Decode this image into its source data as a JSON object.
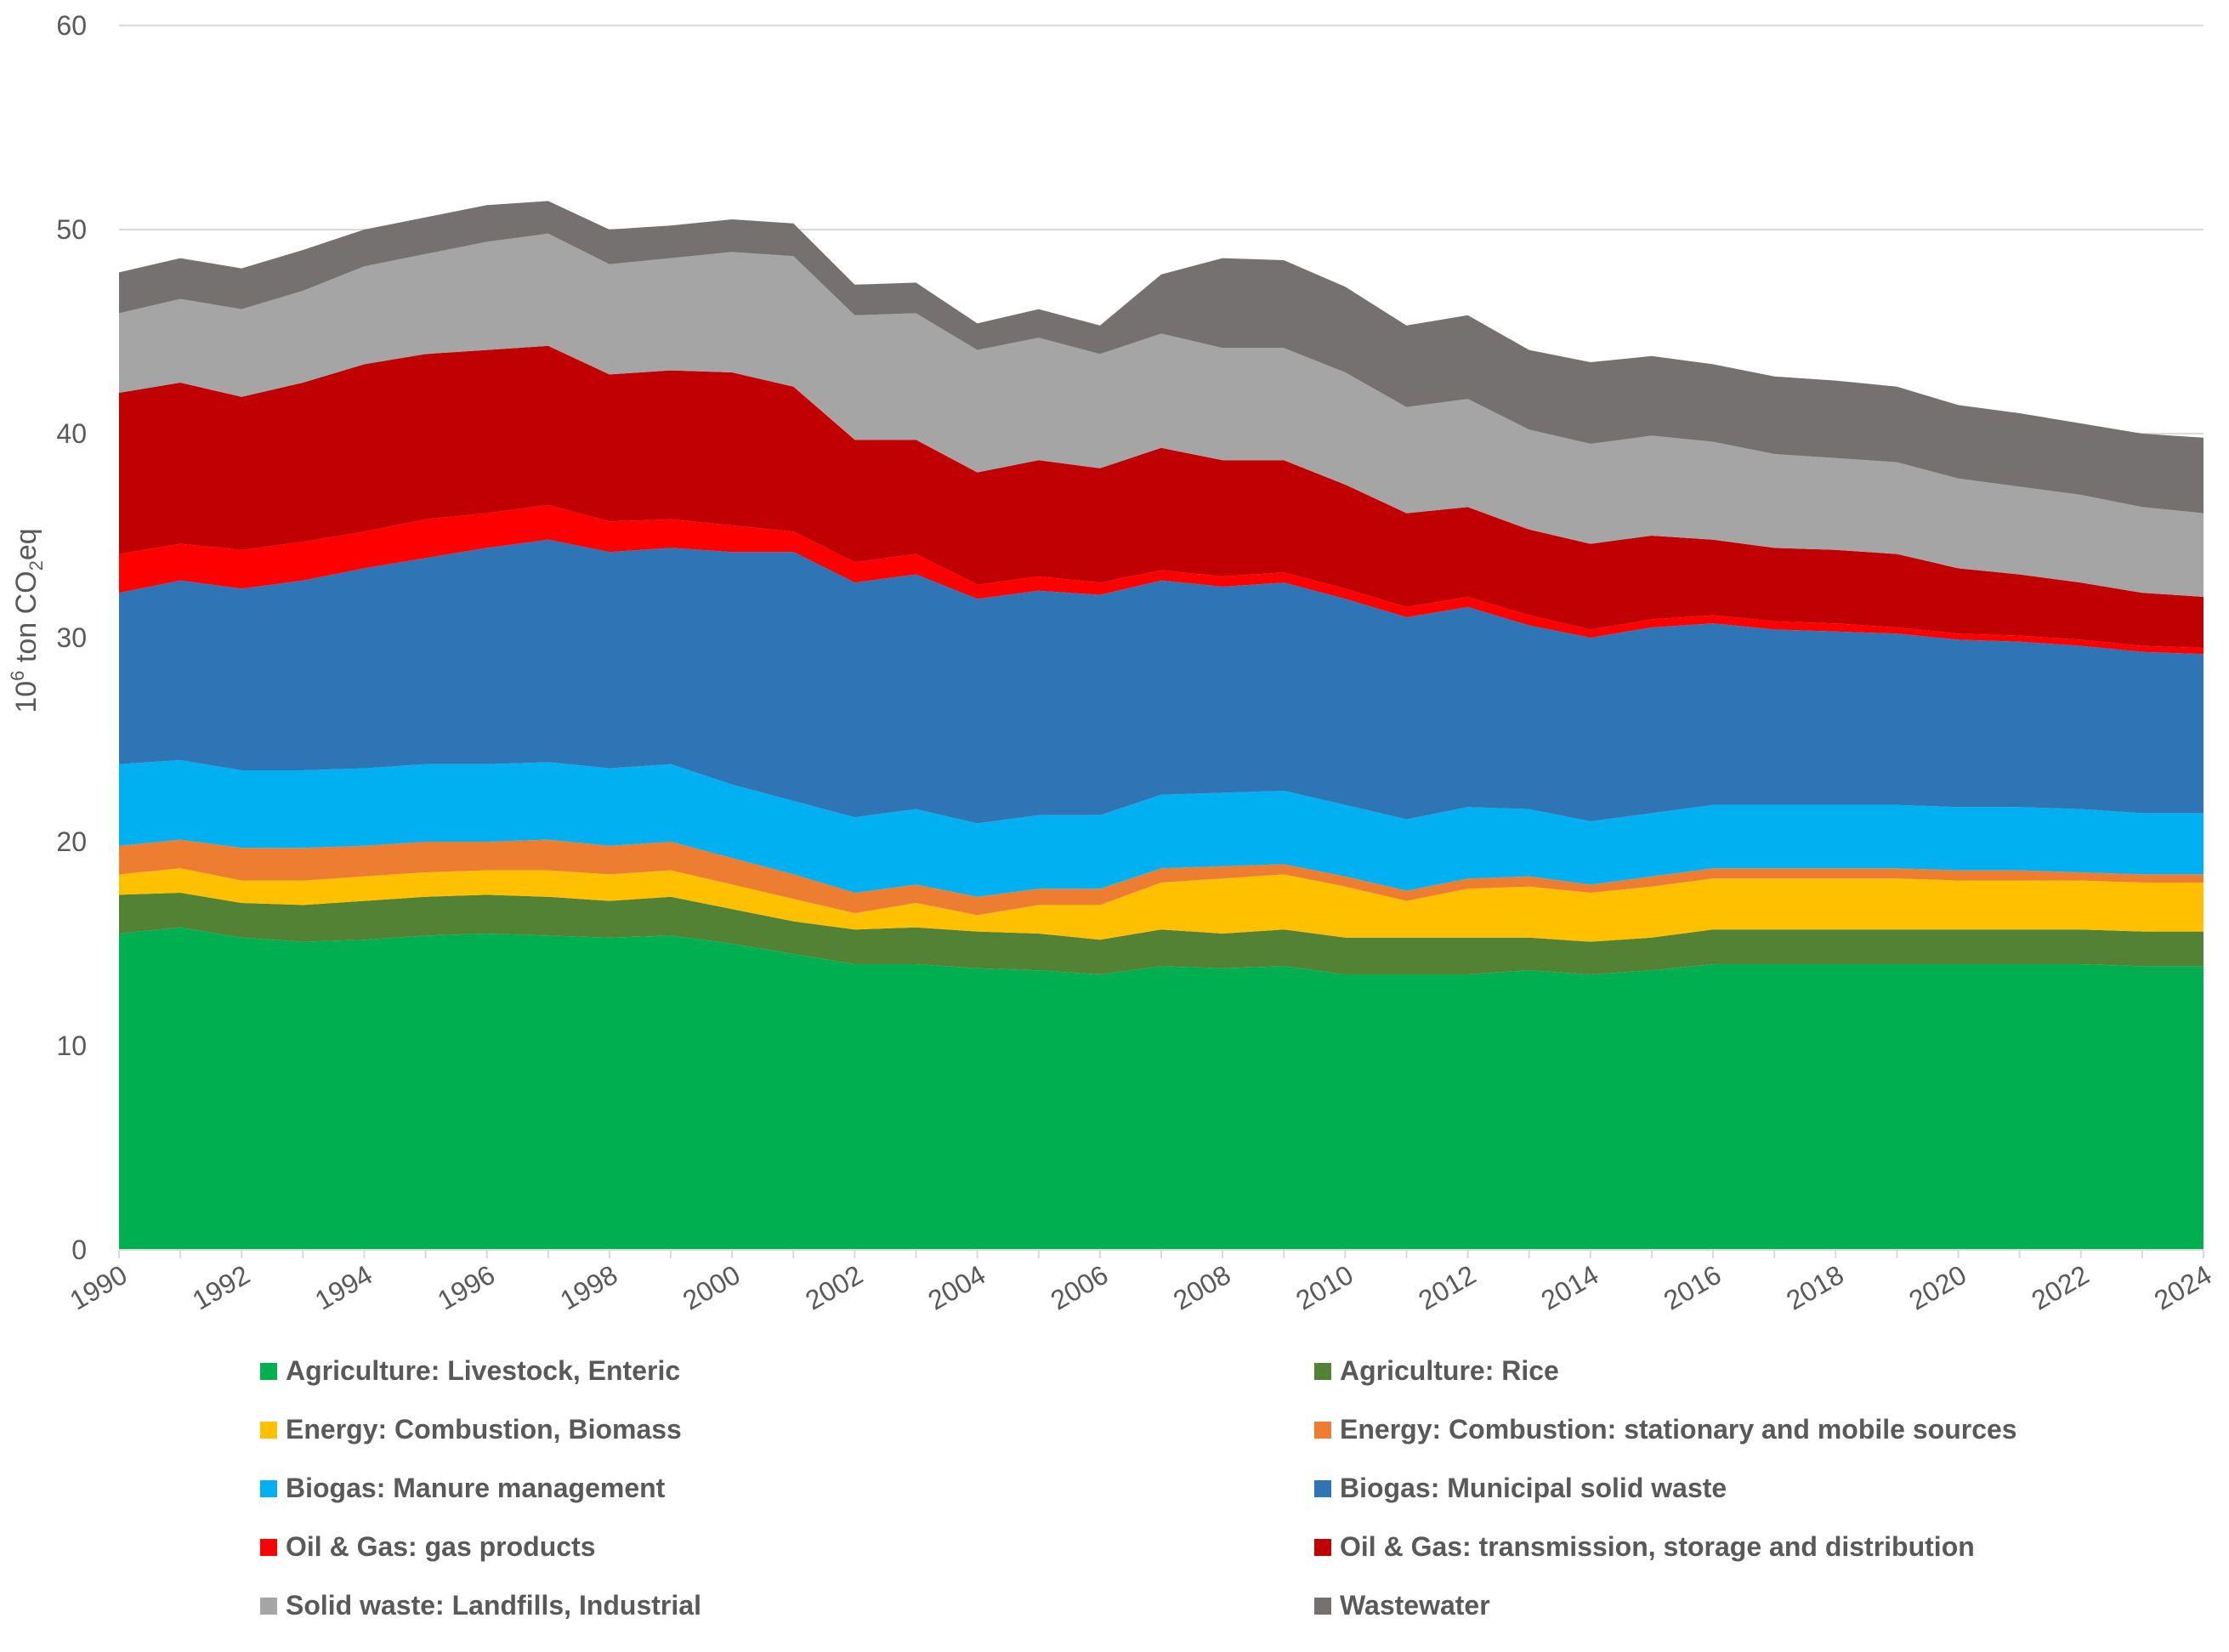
{
  "chart_data": {
    "type": "area",
    "stacked": true,
    "title": "",
    "xlabel": "",
    "ylabel_base": "10",
    "ylabel_sup": "6",
    "ylabel_mid": " ton CO",
    "ylabel_sub": "2",
    "ylabel_end": "eq",
    "ylim": [
      0,
      60
    ],
    "yticks": [
      0,
      10,
      20,
      30,
      40,
      50,
      60
    ],
    "xlim": [
      1990,
      2024
    ],
    "xticks": [
      1990,
      1992,
      1994,
      1996,
      1998,
      2000,
      2002,
      2004,
      2006,
      2008,
      2010,
      2012,
      2014,
      2016,
      2018,
      2020,
      2022,
      2024
    ],
    "grid": true,
    "legend_position": "bottom",
    "x": [
      1990,
      1991,
      1992,
      1993,
      1994,
      1995,
      1996,
      1997,
      1998,
      1999,
      2000,
      2001,
      2002,
      2003,
      2004,
      2005,
      2006,
      2007,
      2008,
      2009,
      2010,
      2011,
      2012,
      2013,
      2014,
      2015,
      2016,
      2017,
      2018,
      2019,
      2020,
      2021,
      2022,
      2023,
      2024
    ],
    "series": [
      {
        "name": "Agriculture: Livestock, Enteric",
        "color": "#00B050",
        "values": [
          15.5,
          15.8,
          15.3,
          15.1,
          15.2,
          15.4,
          15.5,
          15.4,
          15.3,
          15.4,
          15.0,
          14.5,
          14.0,
          14.0,
          13.8,
          13.7,
          13.5,
          13.9,
          13.8,
          13.9,
          13.5,
          13.5,
          13.5,
          13.7,
          13.5,
          13.7,
          14.0,
          14.0,
          14.0,
          14.0,
          14.0,
          14.0,
          14.0,
          13.9,
          13.9
        ]
      },
      {
        "name": "Agriculture: Rice",
        "color": "#548235",
        "values": [
          1.9,
          1.7,
          1.7,
          1.8,
          1.9,
          1.9,
          1.9,
          1.9,
          1.8,
          1.9,
          1.7,
          1.6,
          1.7,
          1.8,
          1.8,
          1.8,
          1.7,
          1.8,
          1.7,
          1.8,
          1.8,
          1.8,
          1.8,
          1.6,
          1.6,
          1.6,
          1.7,
          1.7,
          1.7,
          1.7,
          1.7,
          1.7,
          1.7,
          1.7,
          1.7
        ]
      },
      {
        "name": "Energy: Combustion, Biomass",
        "color": "#FFC000",
        "values": [
          1.0,
          1.2,
          1.1,
          1.2,
          1.2,
          1.2,
          1.2,
          1.3,
          1.3,
          1.3,
          1.2,
          1.1,
          0.8,
          1.2,
          0.8,
          1.4,
          1.7,
          2.3,
          2.7,
          2.7,
          2.5,
          1.8,
          2.4,
          2.5,
          2.4,
          2.5,
          2.5,
          2.5,
          2.5,
          2.5,
          2.4,
          2.4,
          2.4,
          2.4,
          2.4
        ]
      },
      {
        "name": "Energy: Combustion: stationary and mobile sources",
        "color": "#ED7D31",
        "values": [
          1.4,
          1.4,
          1.6,
          1.6,
          1.5,
          1.5,
          1.4,
          1.5,
          1.4,
          1.4,
          1.3,
          1.2,
          1.0,
          0.9,
          0.9,
          0.8,
          0.8,
          0.7,
          0.6,
          0.5,
          0.5,
          0.5,
          0.5,
          0.5,
          0.4,
          0.5,
          0.5,
          0.5,
          0.5,
          0.5,
          0.5,
          0.5,
          0.4,
          0.4,
          0.4
        ]
      },
      {
        "name": "Biogas: Manure management",
        "color": "#00B0F0",
        "values": [
          4.0,
          3.9,
          3.8,
          3.8,
          3.8,
          3.8,
          3.8,
          3.8,
          3.8,
          3.8,
          3.6,
          3.6,
          3.7,
          3.7,
          3.6,
          3.6,
          3.6,
          3.6,
          3.6,
          3.6,
          3.5,
          3.5,
          3.5,
          3.3,
          3.1,
          3.1,
          3.1,
          3.1,
          3.1,
          3.1,
          3.1,
          3.1,
          3.1,
          3.0,
          3.0
        ]
      },
      {
        "name": "Biogas: Municipal solid waste",
        "color": "#2E75B6",
        "values": [
          8.4,
          8.8,
          8.9,
          9.3,
          9.8,
          10.1,
          10.6,
          10.9,
          10.6,
          10.6,
          11.4,
          12.2,
          11.5,
          11.5,
          11.0,
          11.0,
          10.8,
          10.5,
          10.1,
          10.2,
          10.1,
          9.9,
          9.8,
          9.0,
          9.0,
          9.1,
          8.9,
          8.6,
          8.5,
          8.4,
          8.2,
          8.1,
          8.0,
          7.9,
          7.8
        ]
      },
      {
        "name": "Oil & Gas: gas products",
        "color": "#FF0000",
        "values": [
          1.9,
          1.8,
          1.9,
          1.9,
          1.8,
          1.9,
          1.7,
          1.7,
          1.5,
          1.4,
          1.3,
          1.0,
          1.0,
          1.0,
          0.7,
          0.7,
          0.6,
          0.5,
          0.5,
          0.5,
          0.5,
          0.5,
          0.5,
          0.5,
          0.4,
          0.4,
          0.4,
          0.4,
          0.4,
          0.3,
          0.3,
          0.3,
          0.3,
          0.3,
          0.3
        ]
      },
      {
        "name": "Oil & Gas: transmission, storage and distribution",
        "color": "#C00000",
        "values": [
          7.9,
          7.9,
          7.5,
          7.8,
          8.2,
          8.1,
          8.0,
          7.8,
          7.2,
          7.3,
          7.5,
          7.1,
          6.0,
          5.6,
          5.5,
          5.7,
          5.6,
          6.0,
          5.7,
          5.5,
          5.1,
          4.6,
          4.4,
          4.2,
          4.2,
          4.1,
          3.7,
          3.6,
          3.6,
          3.6,
          3.2,
          3.0,
          2.8,
          2.6,
          2.5
        ]
      },
      {
        "name": "Solid waste: Landfills, Industrial",
        "color": "#A5A5A5",
        "values": [
          3.9,
          4.1,
          4.3,
          4.5,
          4.8,
          4.9,
          5.3,
          5.5,
          5.4,
          5.5,
          5.9,
          6.4,
          6.1,
          6.2,
          6.0,
          6.0,
          5.6,
          5.6,
          5.5,
          5.5,
          5.5,
          5.2,
          5.3,
          4.9,
          4.9,
          4.9,
          4.8,
          4.6,
          4.5,
          4.5,
          4.4,
          4.3,
          4.3,
          4.2,
          4.1
        ]
      },
      {
        "name": "Wastewater",
        "color": "#767171",
        "values": [
          2.0,
          2.0,
          2.0,
          2.0,
          1.8,
          1.8,
          1.8,
          1.6,
          1.7,
          1.6,
          1.6,
          1.6,
          1.5,
          1.5,
          1.3,
          1.4,
          1.4,
          2.9,
          4.4,
          4.3,
          4.2,
          4.0,
          4.1,
          3.9,
          4.0,
          3.9,
          3.8,
          3.8,
          3.8,
          3.7,
          3.6,
          3.6,
          3.5,
          3.6,
          3.7
        ]
      }
    ]
  }
}
